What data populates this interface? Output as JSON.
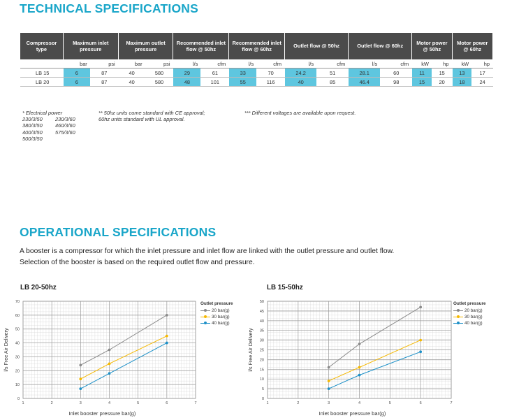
{
  "tech": {
    "title": "TECHNICAL SPECIFICATIONS",
    "headers": [
      "Compressor type",
      "Maximum inlet pressure",
      "Maximum outlet pressure",
      "Recommended inlet flow @ 50hz",
      "Recommended inlet flow @ 60hz",
      "Outlet flow @ 50hz",
      "Outlet flow @ 60hz",
      "Motor power @ 50hz",
      "Motor power @ 60hz"
    ],
    "units": [
      "",
      "bar",
      "psi",
      "bar",
      "psi",
      "l/s",
      "cfm",
      "l/s",
      "cfm",
      "l/s",
      "cfm",
      "l/s",
      "cfm",
      "kW",
      "hp",
      "kW",
      "hp"
    ],
    "rows": [
      [
        "LB 15",
        "6",
        "87",
        "40",
        "580",
        "29",
        "61",
        "33",
        "70",
        "24.2",
        "51",
        "28.1",
        "60",
        "11",
        "15",
        "13",
        "17"
      ],
      [
        "LB 20",
        "6",
        "87",
        "40",
        "580",
        "48",
        "101",
        "55",
        "116",
        "40",
        "85",
        "46.4",
        "98",
        "15",
        "20",
        "18",
        "24"
      ]
    ]
  },
  "footnotes": {
    "power_title": "* Electrical power",
    "power_left": [
      "230/3/50",
      "380/3/50",
      "400/3/50",
      "500/3/50"
    ],
    "power_right": [
      "230/3/60",
      "460/3/60",
      "575/3/60"
    ],
    "note2": [
      "** 50hz units come standard with CE approval;",
      "60hz units standard with UL approval."
    ],
    "note3": "*** Different voltages are available upon request."
  },
  "oper": {
    "title": "OPERATIONAL SPECIFICATIONS",
    "para1": "A booster is a compressor for which the inlet pressure and inlet flow are linked with the outlet pressure and outlet flow.",
    "para2": "Selection of the booster is based on the required outlet flow and pressure."
  },
  "legend_title": "Outlet pressure",
  "chart_data": [
    {
      "type": "line",
      "title": "LB 20-50hz",
      "xlabel": "Inlet booster pressure bar(g)",
      "ylabel": "l/s Free Air Delivery",
      "xlim": [
        1,
        7
      ],
      "ylim": [
        0,
        70
      ],
      "x_ticks": [
        1,
        2,
        3,
        4,
        5,
        6,
        7
      ],
      "y_ticks": [
        0,
        10,
        20,
        30,
        40,
        50,
        60,
        70
      ],
      "grid": true,
      "legend": "right",
      "series": [
        {
          "name": "20 bar(g)",
          "color": "#8a8a8a",
          "points": [
            [
              3,
              24
            ],
            [
              4,
              35
            ],
            [
              6,
              60
            ]
          ]
        },
        {
          "name": "30 bar(g)",
          "color": "#f5b800",
          "points": [
            [
              3,
              14
            ],
            [
              4,
              25
            ],
            [
              6,
              45
            ]
          ]
        },
        {
          "name": "40 bar(g)",
          "color": "#1b8fc7",
          "points": [
            [
              3,
              7
            ],
            [
              4,
              18
            ],
            [
              6,
              40
            ]
          ]
        }
      ]
    },
    {
      "type": "line",
      "title": "LB 15-50hz",
      "xlabel": "Inlet booster pressure bar(g)",
      "ylabel": "l/s Free Air Delivery",
      "xlim": [
        1,
        7
      ],
      "ylim": [
        0,
        50
      ],
      "x_ticks": [
        1,
        2,
        3,
        4,
        5,
        6,
        7
      ],
      "y_ticks": [
        0,
        5,
        10,
        15,
        20,
        25,
        30,
        35,
        40,
        45,
        50
      ],
      "grid": true,
      "legend": "right",
      "series": [
        {
          "name": "20 bar(g)",
          "color": "#8a8a8a",
          "points": [
            [
              3,
              16
            ],
            [
              4,
              28
            ],
            [
              6,
              47
            ]
          ]
        },
        {
          "name": "30 bar(g)",
          "color": "#f5b800",
          "points": [
            [
              3,
              9
            ],
            [
              4,
              16
            ],
            [
              6,
              30
            ]
          ]
        },
        {
          "name": "40 bar(g)",
          "color": "#1b8fc7",
          "points": [
            [
              3,
              5
            ],
            [
              4,
              12
            ],
            [
              6,
              24
            ]
          ]
        }
      ]
    }
  ]
}
